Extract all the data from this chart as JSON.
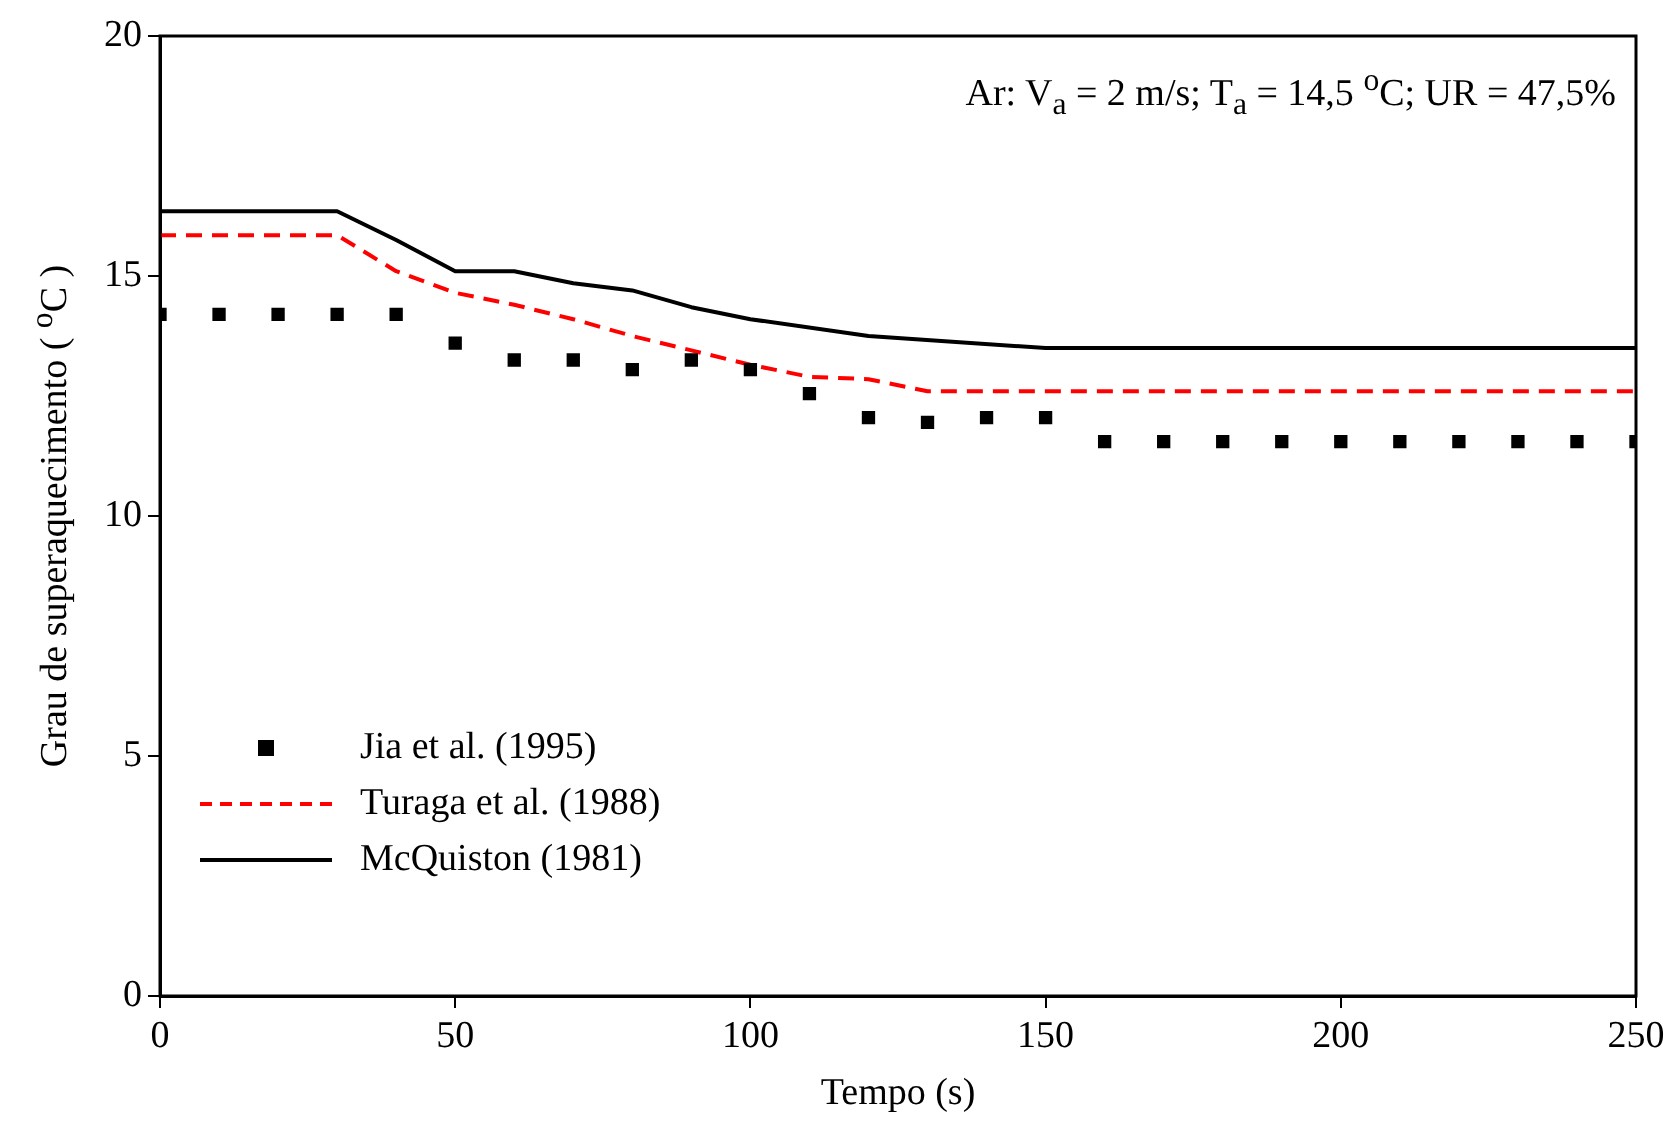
{
  "chart_data": {
    "type": "line",
    "xlabel": "Tempo (s)",
    "ylabel": "Grau de superaquecimento ( $^{o}$C )",
    "annotations": [
      "Ar: V$_{a}$ = 2 m/s; T$_{a}$ = 14,5 $^{o}$C; UR = 47,5%"
    ],
    "xlim": [
      0,
      250
    ],
    "xticks": [
      0,
      50,
      100,
      150,
      200,
      250
    ],
    "ylim": [
      0,
      20
    ],
    "yticks": [
      0,
      5,
      10,
      15,
      20
    ],
    "grid": false,
    "legend": "bottom left",
    "series": [
      {
        "name": "Jia et al. (1995)",
        "type": "scatter",
        "marker": "square",
        "color": "#000000",
        "x": [
          0,
          10,
          20,
          30,
          40,
          50,
          60,
          70,
          80,
          90,
          100,
          110,
          120,
          130,
          140,
          150,
          160,
          170,
          180,
          190,
          200,
          210,
          220,
          230,
          240,
          250
        ],
        "values": [
          14.2,
          14.2,
          14.2,
          14.2,
          14.2,
          13.6,
          13.25,
          13.25,
          13.05,
          13.25,
          13.05,
          12.55,
          12.05,
          11.95,
          12.05,
          12.05,
          11.55,
          11.55,
          11.55,
          11.55,
          11.55,
          11.55,
          11.55,
          11.55,
          11.55,
          11.55
        ]
      },
      {
        "name": "Turaga et al. (1988)",
        "type": "line",
        "line_style": "dashed",
        "marker": "none",
        "color": "#ff0000",
        "x": [
          0,
          30,
          40,
          50,
          60,
          70,
          80,
          90,
          100,
          110,
          120,
          130,
          250
        ],
        "values": [
          15.85,
          15.85,
          15.1,
          14.65,
          14.4,
          14.1,
          13.75,
          13.45,
          13.15,
          12.9,
          12.85,
          12.6,
          12.6
        ]
      },
      {
        "name": "McQuiston (1981)",
        "type": "line",
        "line_style": "solid",
        "marker": "none",
        "color": "#000000",
        "x": [
          0,
          30,
          40,
          50,
          60,
          70,
          80,
          90,
          100,
          120,
          150,
          250
        ],
        "values": [
          16.35,
          16.35,
          15.75,
          15.1,
          15.1,
          14.85,
          14.7,
          14.35,
          14.1,
          13.75,
          13.5,
          13.5
        ]
      }
    ]
  }
}
